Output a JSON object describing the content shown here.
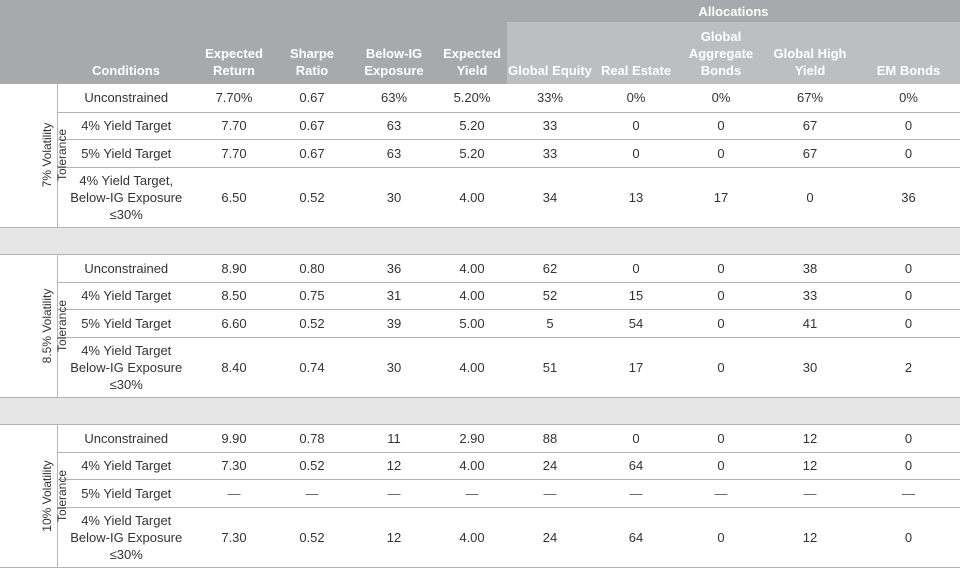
{
  "header": {
    "allocations": "Allocations",
    "columns": [
      "Conditions",
      "Expected Return",
      "Sharpe Ratio",
      "Below-IG Exposure",
      "Expected Yield",
      "Global Equity",
      "Real Estate",
      "Global Aggregate Bonds",
      "Global High Yield",
      "EM Bonds"
    ]
  },
  "groups": [
    {
      "label": "7% Volatility Tolerance",
      "rows": [
        [
          "Unconstrained",
          "7.70%",
          "0.67",
          "63%",
          "5.20%",
          "33%",
          "0%",
          "0%",
          "67%",
          "0%"
        ],
        [
          "4% Yield Target",
          "7.70",
          "0.67",
          "63",
          "5.20",
          "33",
          "0",
          "0",
          "67",
          "0"
        ],
        [
          "5% Yield Target",
          "7.70",
          "0.67",
          "63",
          "5.20",
          "33",
          "0",
          "0",
          "67",
          "0"
        ],
        [
          "4% Yield Target, Below-IG Exposure ≤30%",
          "6.50",
          "0.52",
          "30",
          "4.00",
          "34",
          "13",
          "17",
          "0",
          "36"
        ]
      ]
    },
    {
      "label": "8.5% Volatility Tolerance",
      "rows": [
        [
          "Unconstrained",
          "8.90",
          "0.80",
          "36",
          "4.00",
          "62",
          "0",
          "0",
          "38",
          "0"
        ],
        [
          "4% Yield Target",
          "8.50",
          "0.75",
          "31",
          "4.00",
          "52",
          "15",
          "0",
          "33",
          "0"
        ],
        [
          "5% Yield Target",
          "6.60",
          "0.52",
          "39",
          "5.00",
          "5",
          "54",
          "0",
          "41",
          "0"
        ],
        [
          "4% Yield Target Below-IG Exposure ≤30%",
          "8.40",
          "0.74",
          "30",
          "4.00",
          "51",
          "17",
          "0",
          "30",
          "2"
        ]
      ]
    },
    {
      "label": "10% Volatility Tolerance",
      "rows": [
        [
          "Unconstrained",
          "9.90",
          "0.78",
          "11",
          "2.90",
          "88",
          "0",
          "0",
          "12",
          "0"
        ],
        [
          "4% Yield Target",
          "7.30",
          "0.52",
          "12",
          "4.00",
          "24",
          "64",
          "0",
          "12",
          "0"
        ],
        [
          "5% Yield Target",
          "—",
          "—",
          "—",
          "—",
          "—",
          "—",
          "—",
          "—",
          "—"
        ],
        [
          "4% Yield Target Below-IG Exposure ≤30%",
          "7.30",
          "0.52",
          "12",
          "4.00",
          "24",
          "64",
          "0",
          "12",
          "0"
        ]
      ]
    }
  ]
}
